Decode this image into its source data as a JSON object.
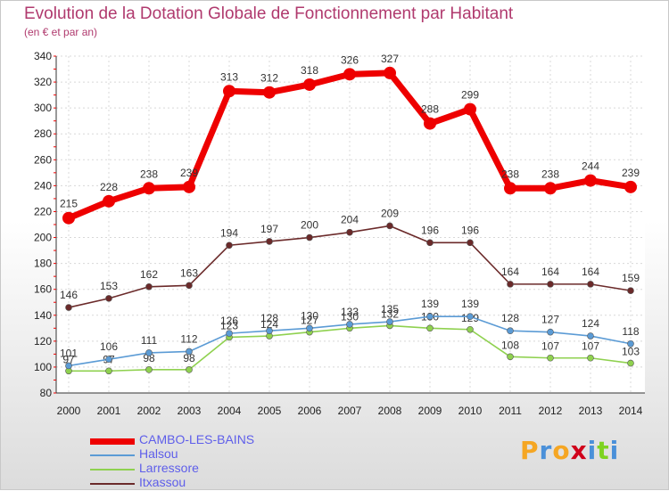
{
  "title": "Evolution de la Dotation Globale de Fonctionnement par Habitant",
  "subtitle": "(en € et par an)",
  "logo": {
    "text": "Proxiti",
    "letters": [
      "P",
      "r",
      "o",
      "x",
      "i",
      "t",
      "i"
    ],
    "colors": [
      "#f5a623",
      "#4a90d9",
      "#f5a623",
      "#d0021b",
      "#4a90d9",
      "#7ed321",
      "#4a90d9"
    ]
  },
  "chart_data": {
    "type": "line",
    "title": "Evolution de la Dotation Globale de Fonctionnement par Habitant",
    "subtitle": "(en € et par an)",
    "xlabel": "",
    "ylabel": "",
    "ylim": [
      80,
      340
    ],
    "yticks": [
      80,
      100,
      120,
      140,
      160,
      180,
      200,
      220,
      240,
      260,
      280,
      300,
      320,
      340
    ],
    "categories": [
      "2000",
      "2001",
      "2002",
      "2003",
      "2004",
      "2005",
      "2006",
      "2007",
      "2008",
      "2009",
      "2010",
      "2011",
      "2012",
      "2013",
      "2014"
    ],
    "grid": true,
    "legend_position": "bottom-left",
    "series": [
      {
        "name": "CAMBO-LES-BAINS",
        "color": "#ee0000",
        "values": [
          215,
          228,
          238,
          239,
          313,
          312,
          318,
          326,
          327,
          288,
          299,
          238,
          238,
          244,
          239
        ]
      },
      {
        "name": "Halsou",
        "color": "#5b9bd5",
        "values": [
          101,
          106,
          111,
          112,
          126,
          128,
          130,
          133,
          135,
          139,
          139,
          128,
          127,
          124,
          118
        ]
      },
      {
        "name": "Larressore",
        "color": "#8fd14f",
        "values": [
          97,
          97,
          98,
          98,
          123,
          124,
          127,
          130,
          132,
          130,
          129,
          108,
          107,
          107,
          103
        ]
      },
      {
        "name": "Itxassou",
        "color": "#6b2a2a",
        "values": [
          146,
          153,
          162,
          163,
          194,
          197,
          200,
          204,
          209,
          196,
          196,
          164,
          164,
          164,
          159
        ]
      }
    ]
  }
}
